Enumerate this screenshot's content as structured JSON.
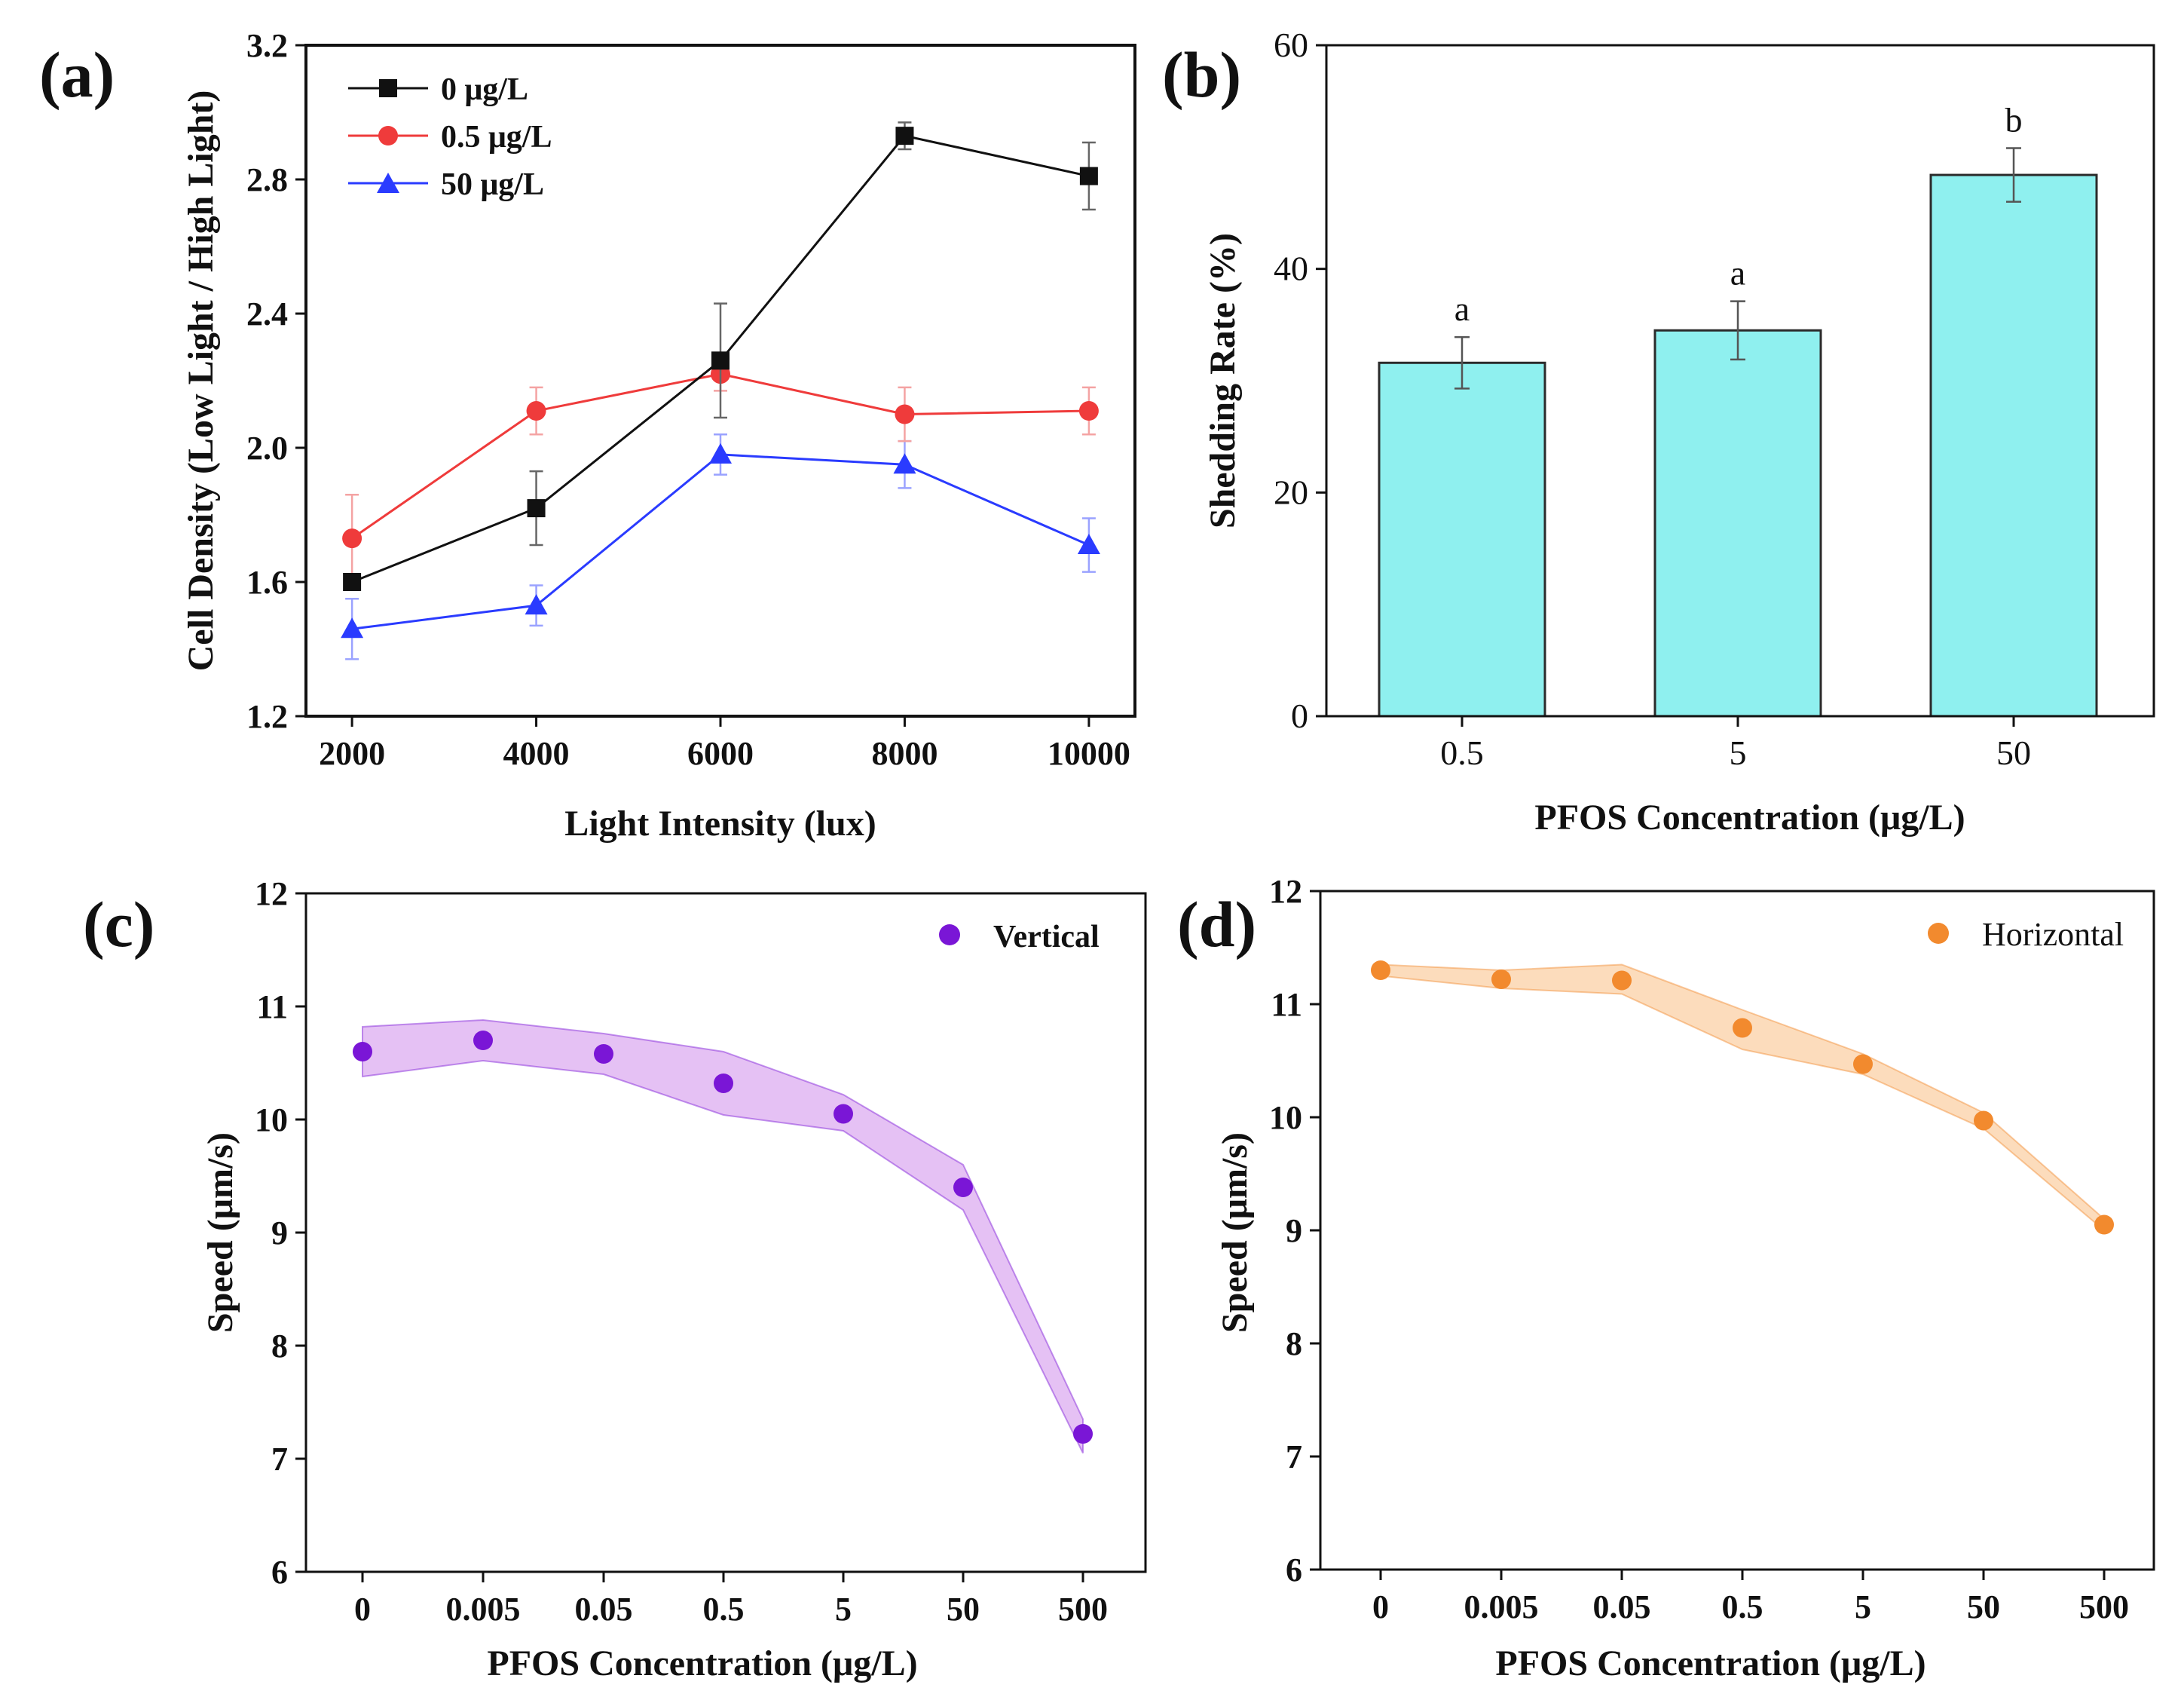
{
  "colors": {
    "black": "#111111",
    "red": "#ef3b3b",
    "blue": "#2a3bff",
    "cyan": "#8ff0ef",
    "purple": "#7a16d6",
    "purple_band": "#e1b6f2",
    "orange": "#f28a2e",
    "orange_band": "#fbd6b0"
  },
  "chart_data": [
    {
      "panel": "(a)",
      "type": "line",
      "xlabel": "Light Intensity (lux)",
      "ylabel": "Cell Density (Low Light / High Light)",
      "xlim": [
        1500,
        10500
      ],
      "ylim": [
        1.2,
        3.2
      ],
      "x_ticks": [
        2000,
        4000,
        6000,
        8000,
        10000
      ],
      "y_ticks": [
        1.2,
        1.6,
        2.0,
        2.4,
        2.8,
        3.2
      ],
      "x_tick_labels": [
        "2000",
        "4000",
        "6000",
        "8000",
        "10000"
      ],
      "y_tick_labels": [
        "1.2",
        "1.6",
        "2.0",
        "2.4",
        "2.8",
        "3.2"
      ],
      "x": [
        2000,
        4000,
        6000,
        8000,
        10000
      ],
      "legend_position": "top-left",
      "series": [
        {
          "name": "0 μg/L",
          "marker": "square",
          "color_key": "black",
          "values": [
            1.6,
            1.82,
            2.26,
            2.93,
            2.81
          ],
          "errors": [
            0.0,
            0.11,
            0.17,
            0.04,
            0.1
          ]
        },
        {
          "name": "0.5 μg/L",
          "marker": "circle",
          "color_key": "red",
          "values": [
            1.73,
            2.11,
            2.22,
            2.1,
            2.11
          ],
          "errors": [
            0.13,
            0.07,
            0.05,
            0.08,
            0.07
          ]
        },
        {
          "name": "50 μg/L",
          "marker": "triangle",
          "color_key": "blue",
          "values": [
            1.46,
            1.53,
            1.98,
            1.95,
            1.71
          ],
          "errors": [
            0.09,
            0.06,
            0.06,
            0.07,
            0.08
          ]
        }
      ]
    },
    {
      "panel": "(b)",
      "type": "bar",
      "xlabel": "PFOS Concentration (μg/L)",
      "ylabel": "Shedding Rate (%)",
      "ylim": [
        0,
        60
      ],
      "y_ticks": [
        0,
        20,
        40,
        60
      ],
      "y_tick_labels": [
        "0",
        "20",
        "40",
        "60"
      ],
      "categories": [
        "0.5",
        "5",
        "50"
      ],
      "values": [
        31.6,
        34.5,
        48.4
      ],
      "errors": [
        2.3,
        2.6,
        2.4
      ],
      "significance": [
        "a",
        "a",
        "b"
      ]
    },
    {
      "panel": "(c)",
      "type": "scatter",
      "xlabel": "PFOS Concentration (μg/L)",
      "ylabel": "Speed (μm/s)",
      "ylim": [
        6,
        12
      ],
      "y_ticks": [
        6,
        7,
        8,
        9,
        10,
        11,
        12
      ],
      "y_tick_labels": [
        "6",
        "7",
        "8",
        "9",
        "10",
        "11",
        "12"
      ],
      "categories": [
        "0",
        "0.005",
        "0.05",
        "0.5",
        "5",
        "50",
        "500"
      ],
      "values": [
        10.6,
        10.7,
        10.58,
        10.32,
        10.05,
        9.4,
        7.22
      ],
      "band_upper": [
        10.82,
        10.88,
        10.76,
        10.6,
        10.22,
        9.6,
        7.35
      ],
      "band_lower": [
        10.38,
        10.52,
        10.4,
        10.04,
        9.9,
        9.2,
        7.05
      ],
      "legend": "Vertical",
      "legend_position": "top-right",
      "color_key": "purple",
      "band_color_key": "purple_band"
    },
    {
      "panel": "(d)",
      "type": "scatter",
      "xlabel": "PFOS Concentration (μg/L)",
      "ylabel": "Speed (μm/s)",
      "ylim": [
        6,
        12
      ],
      "y_ticks": [
        6,
        7,
        8,
        9,
        10,
        11,
        12
      ],
      "y_tick_labels": [
        "6",
        "7",
        "8",
        "9",
        "10",
        "11",
        "12"
      ],
      "categories": [
        "0",
        "0.005",
        "0.05",
        "0.5",
        "5",
        "50",
        "500"
      ],
      "values": [
        11.3,
        11.22,
        11.21,
        10.79,
        10.47,
        9.97,
        9.05
      ],
      "band_upper": [
        11.35,
        11.3,
        11.35,
        10.95,
        10.56,
        10.04,
        9.1
      ],
      "band_lower": [
        11.25,
        11.14,
        11.09,
        10.6,
        10.38,
        9.9,
        9.0
      ],
      "legend": "Horizontal",
      "legend_position": "top-right",
      "color_key": "orange",
      "band_color_key": "orange_band"
    }
  ]
}
